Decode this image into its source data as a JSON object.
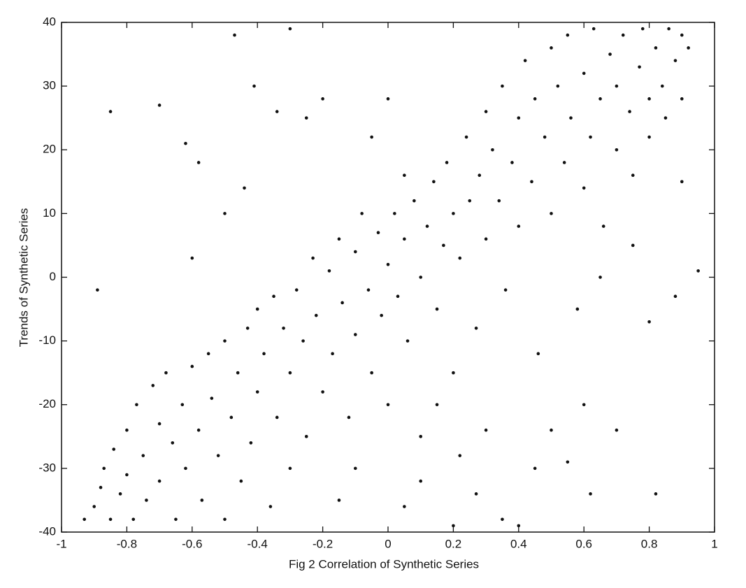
{
  "chart_data": {
    "type": "scatter",
    "xlabel": "Fig 2 Correlation of Synthetic Series",
    "ylabel": "Trends of Synthetic Series",
    "color": "#111111",
    "xlim": [
      -1,
      1
    ],
    "xticks": [
      -1,
      -0.8,
      -0.6,
      -0.4,
      -0.2,
      0,
      0.2,
      0.4,
      0.6,
      0.8,
      1
    ],
    "ylim": [
      -40,
      40
    ],
    "yticks": [
      -40,
      -30,
      -20,
      -10,
      0,
      10,
      20,
      30,
      40
    ],
    "x": [
      -0.93,
      -0.9,
      -0.88,
      -0.87,
      -0.85,
      -0.84,
      -0.82,
      -0.8,
      -0.8,
      -0.78,
      -0.77,
      -0.75,
      -0.74,
      -0.72,
      -0.7,
      -0.7,
      -0.68,
      -0.66,
      -0.65,
      -0.63,
      -0.62,
      -0.6,
      -0.58,
      -0.57,
      -0.55,
      -0.54,
      -0.52,
      -0.5,
      -0.5,
      -0.48,
      -0.46,
      -0.45,
      -0.43,
      -0.42,
      -0.4,
      -0.4,
      -0.38,
      -0.36,
      -0.35,
      -0.34,
      -0.32,
      -0.3,
      -0.3,
      -0.28,
      -0.26,
      -0.25,
      -0.23,
      -0.22,
      -0.2,
      -0.18,
      -0.17,
      -0.15,
      -0.14,
      -0.12,
      -0.1,
      -0.1,
      -0.08,
      -0.06,
      -0.05,
      -0.03,
      -0.02,
      0,
      0,
      0.02,
      0.03,
      0.05,
      0.06,
      0.08,
      0.1,
      0.1,
      0.12,
      0.14,
      0.15,
      0.17,
      0.18,
      0.2,
      0.2,
      0.22,
      0.24,
      0.25,
      0.27,
      0.28,
      0.3,
      0.3,
      0.32,
      0.34,
      0.35,
      0.36,
      0.38,
      0.4,
      0.4,
      0.42,
      0.44,
      0.45,
      0.46,
      0.48,
      0.5,
      0.5,
      0.52,
      0.54,
      0.55,
      0.56,
      0.58,
      0.6,
      0.6,
      0.62,
      0.63,
      0.65,
      0.66,
      0.68,
      0.7,
      0.7,
      0.72,
      0.74,
      0.75,
      0.77,
      0.78,
      0.8,
      0.8,
      0.82,
      0.84,
      0.85,
      0.86,
      0.88,
      0.9,
      0.9,
      0.92,
      0.95,
      -0.85,
      -0.89,
      -0.7,
      -0.62,
      -0.58,
      -0.6,
      -0.47,
      -0.41,
      -0.34,
      -0.3,
      -0.25,
      -0.5,
      -0.44,
      -0.2,
      0,
      -0.05,
      0.35,
      0.45,
      0.5,
      0.6,
      0.62,
      0.7,
      0.82,
      0.8,
      0.88,
      0.9,
      0.4,
      0.2,
      0.1,
      0.27,
      0.55,
      0.3,
      0.15,
      0.22,
      -0.15,
      0.05,
      0.65,
      0.75,
      -0.1,
      0.05
    ],
    "values": [
      -38,
      -36,
      -33,
      -30,
      -38,
      -27,
      -34,
      -24,
      -31,
      -38,
      -20,
      -28,
      -35,
      -17,
      -23,
      -32,
      -15,
      -26,
      -38,
      -20,
      -30,
      -14,
      -24,
      -35,
      -12,
      -19,
      -28,
      -10,
      -38,
      -22,
      -15,
      -32,
      -8,
      -26,
      -5,
      -18,
      -12,
      -36,
      -3,
      -22,
      -8,
      -15,
      -30,
      -2,
      -10,
      -25,
      3,
      -6,
      -18,
      1,
      -12,
      6,
      -4,
      -22,
      4,
      -9,
      10,
      -2,
      -15,
      7,
      -6,
      2,
      -20,
      10,
      -3,
      6,
      -10,
      12,
      0,
      -25,
      8,
      15,
      -5,
      5,
      18,
      10,
      -15,
      3,
      22,
      12,
      -8,
      16,
      6,
      26,
      20,
      12,
      30,
      -2,
      18,
      25,
      8,
      34,
      15,
      28,
      -12,
      22,
      36,
      10,
      30,
      18,
      38,
      25,
      -5,
      32,
      14,
      22,
      39,
      28,
      8,
      35,
      20,
      30,
      38,
      26,
      16,
      33,
      39,
      28,
      22,
      36,
      30,
      25,
      39,
      34,
      28,
      38,
      36,
      1,
      26,
      -2,
      27,
      21,
      18,
      3,
      38,
      30,
      26,
      39,
      25,
      10,
      14,
      28,
      28,
      22,
      -38,
      -30,
      -24,
      -20,
      -34,
      -24,
      -34,
      -7,
      -3,
      15,
      -39,
      -39,
      -32,
      -34,
      -29,
      -24,
      -20,
      -28,
      -35,
      -36,
      0,
      5,
      -30,
      16
    ]
  }
}
